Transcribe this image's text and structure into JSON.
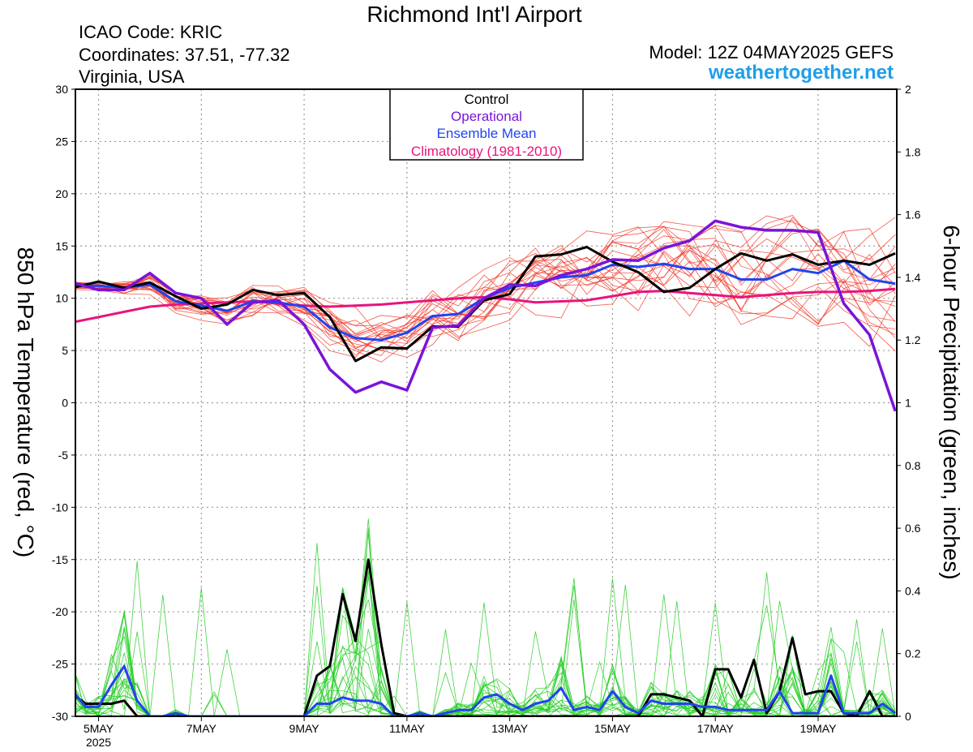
{
  "header": {
    "title": "Richmond Int'l Airport",
    "icao": "ICAO Code: KRIC",
    "coordinates": "Coordinates: 37.51, -77.32",
    "region": "Virginia, USA",
    "model": "Model: 12Z 04MAY2025 GEFS",
    "site": "weathertogether.net"
  },
  "colors": {
    "control": "#000000",
    "operational": "#7a14d8",
    "ensemble_mean": "#2244ee",
    "climatology": "#e8147c",
    "members_temp": "#f03020",
    "members_precip": "#22cc22",
    "site": "#1f9fe6"
  },
  "chart_data": {
    "type": "line",
    "xlabel": "",
    "ylabel": "850 hPa Temperature (red, °C)",
    "ylabel_right": "6-hour Precipitation (green, inches)",
    "ylim": [
      -30,
      30
    ],
    "ylim_right": [
      0,
      2
    ],
    "xlim_days": [
      4.55,
      20.53
    ],
    "grid": true,
    "legend_position": "top-center",
    "legend": [
      "Control",
      "Operational",
      "Ensemble Mean",
      "Climatology (1981-2010)"
    ],
    "x_tick_labels": [
      "5MAY",
      "7MAY",
      "9MAY",
      "11MAY",
      "13MAY",
      "15MAY",
      "17MAY",
      "19MAY"
    ],
    "x_ticks_day": [
      5,
      7,
      9,
      11,
      13,
      15,
      17,
      19
    ],
    "x_year_label": "2025",
    "y_ticks": [
      30,
      25,
      20,
      15,
      10,
      5,
      0,
      -5,
      -10,
      -15,
      -20,
      -25,
      -30
    ],
    "y_ticks_right": [
      2,
      1.8,
      1.6,
      1.4,
      1.2,
      1,
      0.8,
      0.6,
      0.4,
      0.2,
      0
    ],
    "temperature": {
      "x_day": [
        4.5,
        5.0,
        5.5,
        6.0,
        6.5,
        7.0,
        7.5,
        8.0,
        8.5,
        9.0,
        9.5,
        10.0,
        10.5,
        11.0,
        11.5,
        12.0,
        12.5,
        13.0,
        13.5,
        14.0,
        14.5,
        15.0,
        15.5,
        16.0,
        16.5,
        17.0,
        17.5,
        18.0,
        18.5,
        19.0,
        19.5,
        20.0,
        20.5
      ],
      "series": [
        {
          "name": "Control",
          "values": [
            11,
            11.6,
            11,
            11.5,
            10.2,
            9.0,
            9.4,
            10.8,
            10.3,
            10.5,
            8.2,
            4.0,
            5.3,
            5.2,
            7.3,
            7.3,
            9.8,
            10.4,
            14.0,
            14.2,
            14.9,
            13.5,
            12.5,
            10.6,
            11.0,
            12.8,
            14.3,
            13.6,
            14.2,
            13.2,
            13.6,
            13.2,
            14.3
          ]
        },
        {
          "name": "Operational",
          "values": [
            11.5,
            10.8,
            10.8,
            12.4,
            10.5,
            10.0,
            7.5,
            9.6,
            9.8,
            7.5,
            3.2,
            1.0,
            2.0,
            1.2,
            7.2,
            7.4,
            10.0,
            11.3,
            11.2,
            12.2,
            12.8,
            13.7,
            13.6,
            14.8,
            15.5,
            17.4,
            16.8,
            16.5,
            16.5,
            16.3,
            9.5,
            6.5,
            -0.8
          ]
        },
        {
          "name": "Ensemble Mean",
          "values": [
            11.2,
            11.2,
            11.0,
            11.3,
            9.7,
            9.3,
            8.8,
            9.7,
            9.6,
            9.2,
            7.2,
            6.2,
            6.0,
            6.7,
            8.3,
            8.5,
            10.0,
            11.0,
            11.5,
            12.0,
            12.2,
            13.2,
            13.0,
            13.3,
            12.8,
            12.8,
            11.8,
            11.8,
            12.8,
            12.4,
            13.6,
            11.8,
            11.4
          ]
        },
        {
          "name": "Climatology (1981-2010)",
          "values": [
            7.7,
            8.2,
            8.7,
            9.2,
            9.4,
            9.5,
            9.6,
            9.7,
            9.5,
            9.3,
            9.2,
            9.3,
            9.4,
            9.6,
            9.8,
            10.0,
            10.1,
            9.9,
            9.6,
            9.7,
            9.8,
            10.2,
            10.6,
            10.7,
            10.5,
            10.3,
            10.1,
            10.3,
            10.5,
            10.6,
            10.6,
            10.7,
            10.9
          ]
        }
      ]
    },
    "precipitation": {
      "x_day": [
        4.5,
        4.75,
        5.0,
        5.25,
        5.5,
        5.75,
        6.0,
        6.25,
        6.5,
        6.75,
        7.0,
        7.25,
        7.5,
        7.75,
        8.0,
        8.25,
        8.5,
        8.75,
        9.0,
        9.25,
        9.5,
        9.75,
        10.0,
        10.25,
        10.5,
        10.75,
        11.0,
        11.25,
        11.5,
        11.75,
        12.0,
        12.25,
        12.5,
        12.75,
        13.0,
        13.25,
        13.5,
        13.75,
        14.0,
        14.25,
        14.5,
        14.75,
        15.0,
        15.25,
        15.5,
        15.75,
        16.0,
        16.25,
        16.5,
        16.75,
        17.0,
        17.25,
        17.5,
        17.75,
        18.0,
        18.25,
        18.5,
        18.75,
        19.0,
        19.25,
        19.5,
        19.75,
        20.0,
        20.25,
        20.5
      ],
      "series": [
        {
          "name": "Control",
          "values": [
            0.07,
            0.04,
            0.04,
            0.04,
            0.05,
            0.0,
            0.0,
            0.0,
            0.0,
            0.0,
            0.0,
            0.0,
            0.0,
            0.0,
            0.0,
            0.0,
            0.0,
            0.0,
            0.0,
            0.13,
            0.16,
            0.39,
            0.24,
            0.5,
            0.23,
            0.01,
            0.0,
            0.0,
            0.0,
            0.0,
            0.0,
            0.0,
            0.0,
            0.0,
            0.0,
            0.0,
            0.0,
            0.0,
            0.0,
            0.0,
            0.0,
            0.0,
            0.0,
            0.0,
            0.0,
            0.07,
            0.07,
            0.06,
            0.05,
            0.0,
            0.15,
            0.15,
            0.06,
            0.18,
            0.01,
            0.08,
            0.25,
            0.07,
            0.08,
            0.08,
            0.01,
            0.0,
            0.08,
            0.0,
            0.0
          ]
        },
        {
          "name": "Ensemble Mean",
          "values": [
            0.08,
            0.03,
            0.03,
            0.1,
            0.16,
            0.05,
            0.0,
            0.0,
            0.01,
            0.0,
            0.0,
            0.0,
            0.0,
            0.0,
            0.0,
            0.0,
            0.0,
            0.0,
            0.0,
            0.04,
            0.04,
            0.06,
            0.05,
            0.05,
            0.04,
            0.0,
            0.0,
            0.01,
            0.0,
            0.01,
            0.02,
            0.02,
            0.06,
            0.07,
            0.04,
            0.02,
            0.04,
            0.05,
            0.09,
            0.02,
            0.03,
            0.02,
            0.08,
            0.03,
            0.01,
            0.05,
            0.04,
            0.04,
            0.04,
            0.03,
            0.03,
            0.02,
            0.02,
            0.02,
            0.02,
            0.08,
            0.01,
            0.01,
            0.01,
            0.13,
            0.01,
            0.01,
            0.01,
            0.04,
            0.01
          ]
        }
      ]
    }
  }
}
